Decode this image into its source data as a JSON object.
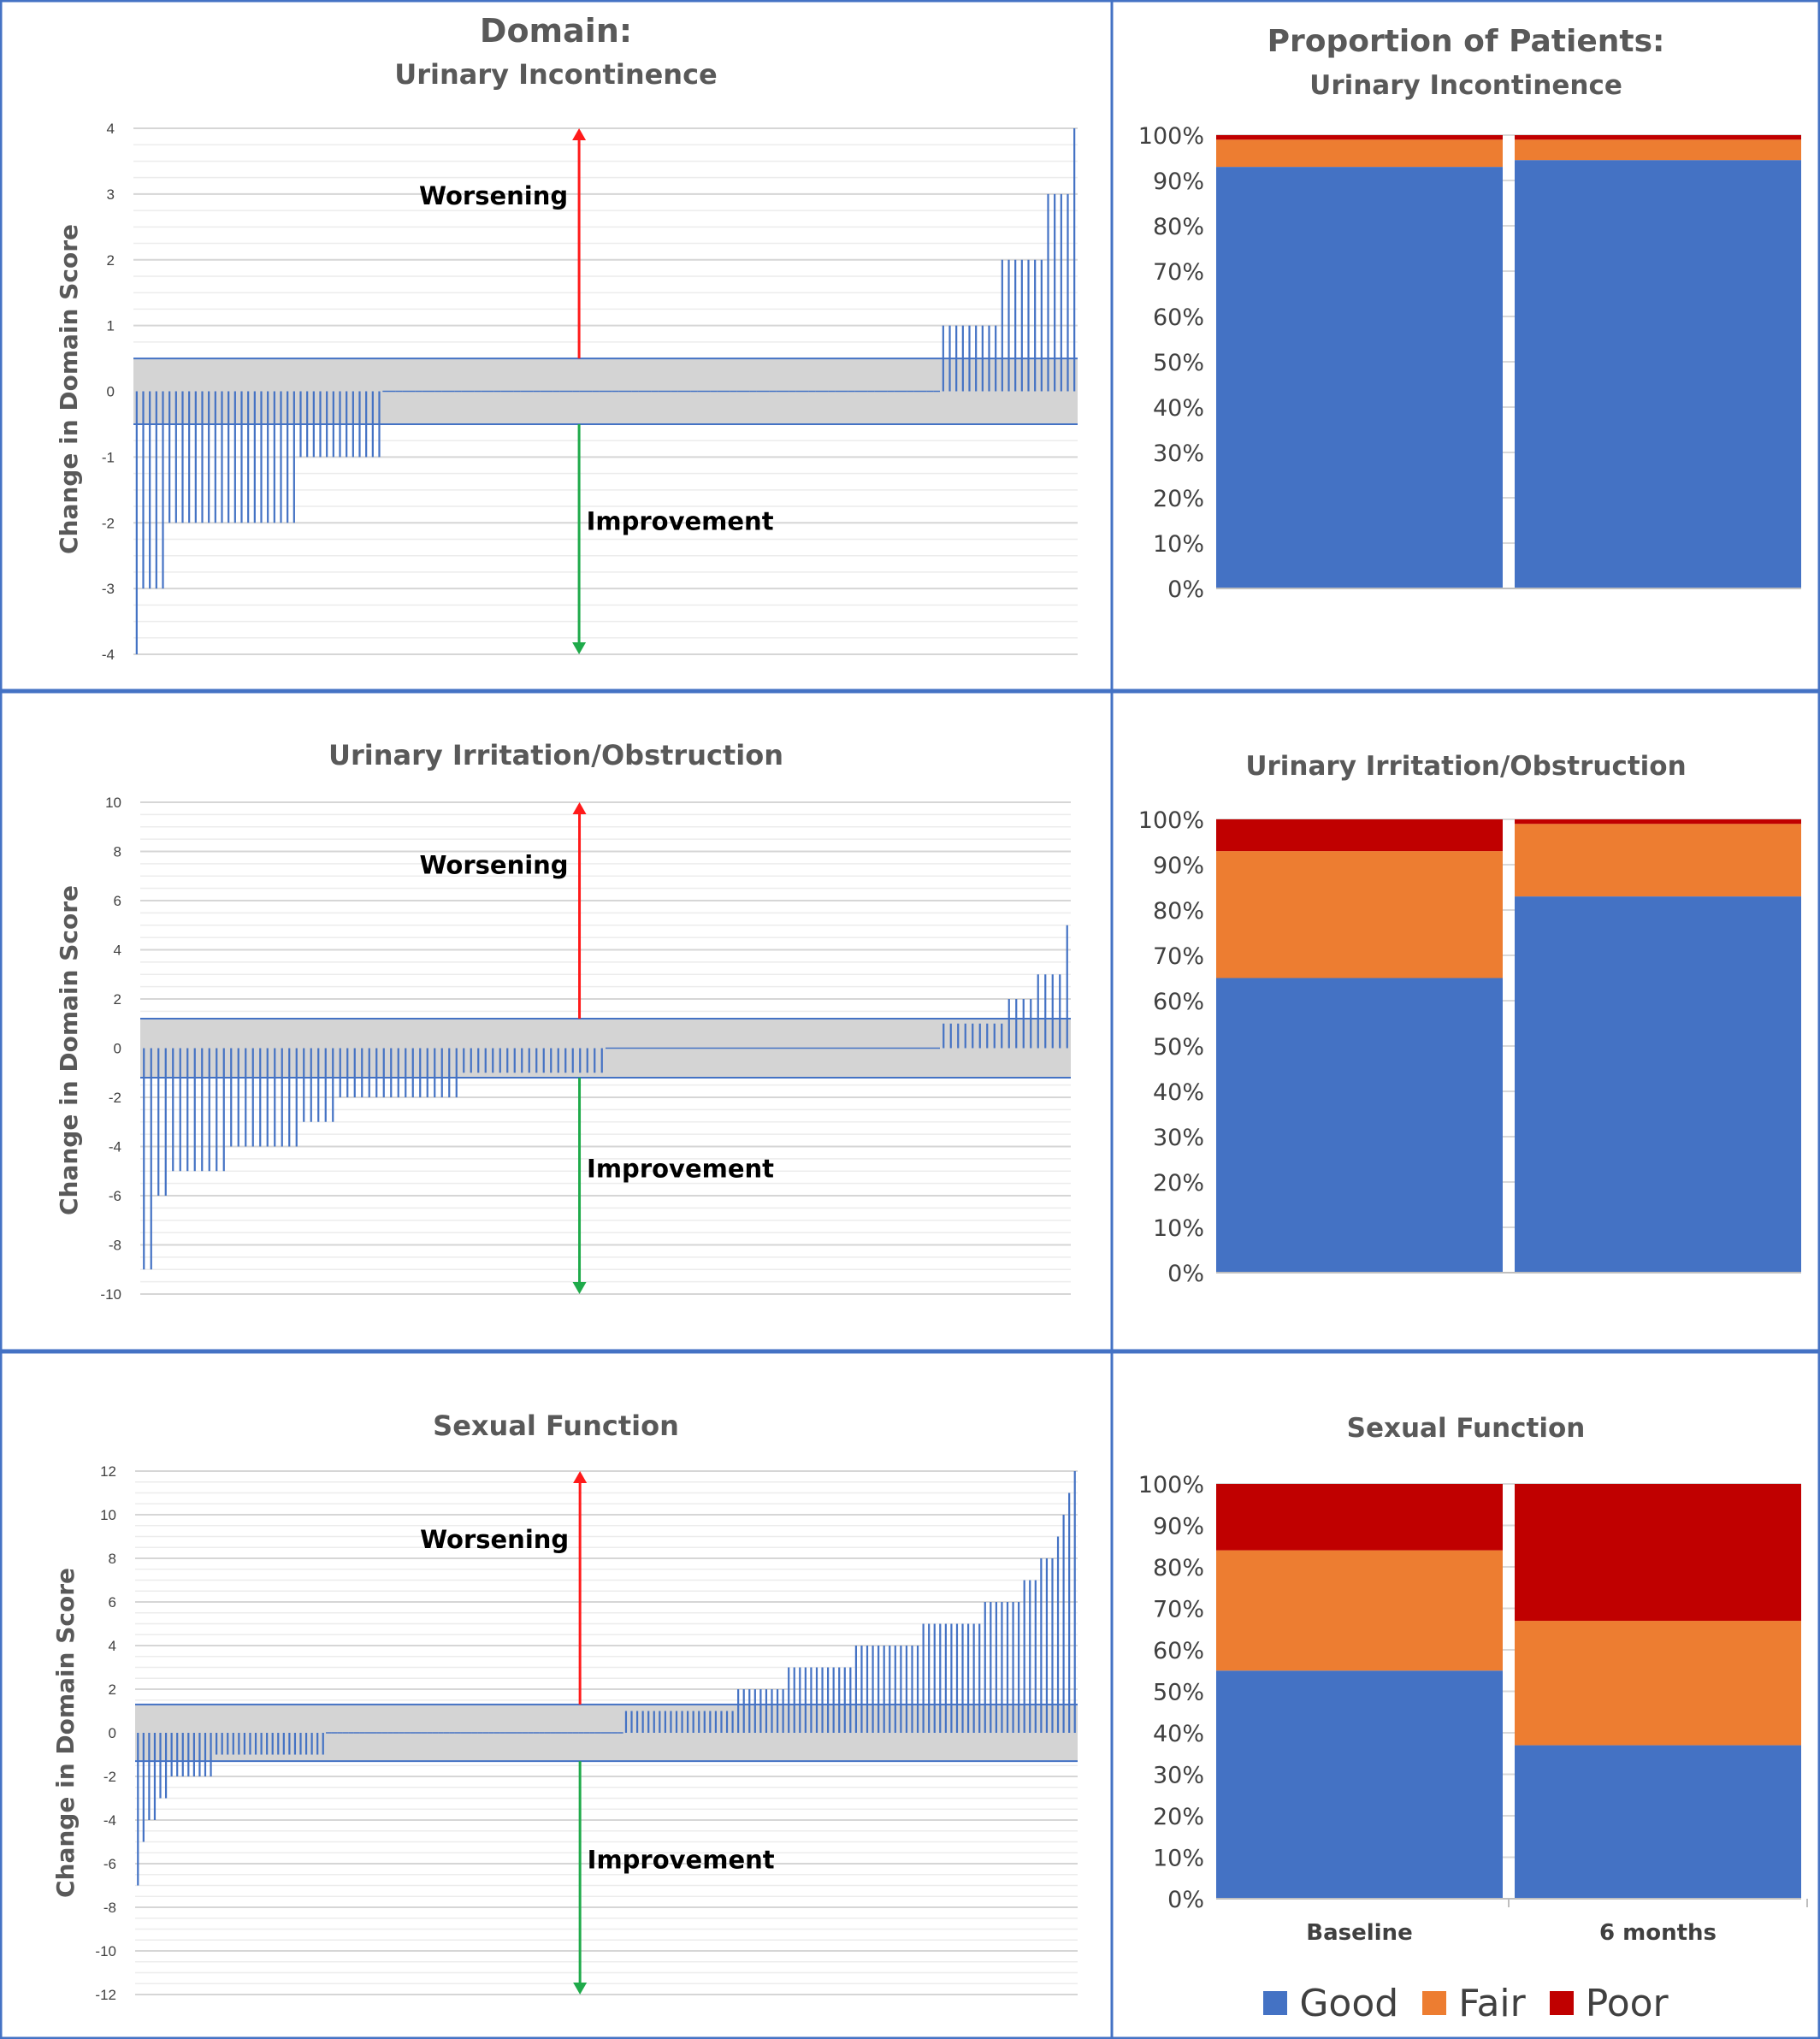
{
  "colors": {
    "bar": "#4472C4",
    "band_fill": "#d4d4d4",
    "band_edge": "#4472C4",
    "worse_arrow": "#ff1a1a",
    "better_arrow": "#1faa4a",
    "good": "#4472C4",
    "fair": "#ED7D31",
    "poor": "#C00000",
    "frame": "#4472C4"
  },
  "left_header": {
    "line1": "Domain:"
  },
  "right_header": {
    "line1": "Proportion of Patients:"
  },
  "legend": [
    {
      "name": "Good",
      "color": "#4472C4"
    },
    {
      "name": "Fair",
      "color": "#ED7D31"
    },
    {
      "name": "Poor",
      "color": "#C00000"
    }
  ],
  "chart_data": [
    {
      "type": "bar",
      "title": "Urinary Incontinence",
      "ylabel": "Change in Domain Score",
      "ylim": [
        -4,
        4
      ],
      "yticks": [
        4,
        3,
        2,
        1,
        0,
        -1,
        -2,
        -3,
        -4
      ],
      "band": [
        -0.5,
        0.5
      ],
      "worse_label": "Worsening",
      "better_label": "Improvement",
      "groups": [
        {
          "value": -4,
          "count": 1
        },
        {
          "value": -3,
          "count": 4
        },
        {
          "value": -2,
          "count": 20
        },
        {
          "value": -1,
          "count": 13
        },
        {
          "value": 0,
          "count": 85
        },
        {
          "value": 1,
          "count": 9
        },
        {
          "value": 2,
          "count": 7
        },
        {
          "value": 3,
          "count": 4
        },
        {
          "value": 4,
          "count": 1
        }
      ]
    },
    {
      "type": "bar",
      "title": "Urinary Irritation/Obstruction",
      "ylabel": "Change in Domain Score",
      "ylim": [
        -10,
        10
      ],
      "yticks": [
        10,
        8,
        6,
        4,
        2,
        0,
        -2,
        -4,
        -6,
        -8,
        -10
      ],
      "band": [
        -1.2,
        1.2
      ],
      "worse_label": "Worsening",
      "better_label": "Improvement",
      "groups": [
        {
          "value": -9,
          "count": 2
        },
        {
          "value": -6,
          "count": 2
        },
        {
          "value": -5,
          "count": 8
        },
        {
          "value": -4,
          "count": 10
        },
        {
          "value": -3,
          "count": 5
        },
        {
          "value": -2,
          "count": 17
        },
        {
          "value": -1,
          "count": 20
        },
        {
          "value": 0,
          "count": 46
        },
        {
          "value": 1,
          "count": 9
        },
        {
          "value": 2,
          "count": 4
        },
        {
          "value": 3,
          "count": 4
        },
        {
          "value": 5,
          "count": 1
        }
      ]
    },
    {
      "type": "bar",
      "title": "Sexual Function",
      "ylabel": "Change in Domain Score",
      "ylim": [
        -12,
        12
      ],
      "yticks": [
        12,
        10,
        8,
        6,
        4,
        2,
        0,
        -2,
        -4,
        -6,
        -8,
        -10,
        -12
      ],
      "band": [
        -1.3,
        1.3
      ],
      "worse_label": "Worsening",
      "better_label": "Improvement",
      "groups": [
        {
          "value": -7,
          "count": 1
        },
        {
          "value": -5,
          "count": 1
        },
        {
          "value": -4,
          "count": 2
        },
        {
          "value": -3,
          "count": 2
        },
        {
          "value": -2,
          "count": 8
        },
        {
          "value": -1,
          "count": 20
        },
        {
          "value": 0,
          "count": 53
        },
        {
          "value": 1,
          "count": 20
        },
        {
          "value": 2,
          "count": 9
        },
        {
          "value": 3,
          "count": 12
        },
        {
          "value": 4,
          "count": 12
        },
        {
          "value": 5,
          "count": 11
        },
        {
          "value": 6,
          "count": 7
        },
        {
          "value": 7,
          "count": 3
        },
        {
          "value": 8,
          "count": 3
        },
        {
          "value": 9,
          "count": 1
        },
        {
          "value": 10,
          "count": 1
        },
        {
          "value": 11,
          "count": 1
        },
        {
          "value": 12,
          "count": 1
        }
      ]
    },
    {
      "type": "bar",
      "title": "Urinary Incontinence",
      "categories": [
        "",
        ""
      ],
      "yticks": [
        "100%",
        "90%",
        "80%",
        "70%",
        "60%",
        "50%",
        "40%",
        "30%",
        "20%",
        "10%",
        "0%"
      ],
      "ylim": [
        0,
        100
      ],
      "stacked": true,
      "series": [
        {
          "name": "Good",
          "values": [
            93,
            94.5
          ]
        },
        {
          "name": "Fair",
          "values": [
            6,
            4.5
          ]
        },
        {
          "name": "Poor",
          "values": [
            1,
            1
          ]
        }
      ]
    },
    {
      "type": "bar",
      "title": "Urinary Irritation/Obstruction",
      "categories": [
        "",
        ""
      ],
      "yticks": [
        "100%",
        "90%",
        "80%",
        "70%",
        "60%",
        "50%",
        "40%",
        "30%",
        "20%",
        "10%",
        "0%"
      ],
      "ylim": [
        0,
        100
      ],
      "stacked": true,
      "series": [
        {
          "name": "Good",
          "values": [
            65,
            83
          ]
        },
        {
          "name": "Fair",
          "values": [
            28,
            16
          ]
        },
        {
          "name": "Poor",
          "values": [
            7,
            1
          ]
        }
      ]
    },
    {
      "type": "bar",
      "title": "Sexual Function",
      "categories": [
        "Baseline",
        "6 months"
      ],
      "yticks": [
        "100%",
        "90%",
        "80%",
        "70%",
        "60%",
        "50%",
        "40%",
        "30%",
        "20%",
        "10%",
        "0%"
      ],
      "ylim": [
        0,
        100
      ],
      "stacked": true,
      "series": [
        {
          "name": "Good",
          "values": [
            55,
            37
          ]
        },
        {
          "name": "Fair",
          "values": [
            29,
            30
          ]
        },
        {
          "name": "Poor",
          "values": [
            16,
            33
          ]
        }
      ]
    }
  ]
}
